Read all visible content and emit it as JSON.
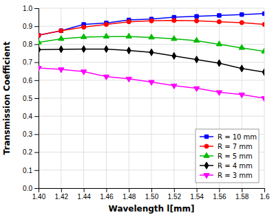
{
  "chart_data": {
    "type": "line",
    "x": [
      1.4,
      1.42,
      1.44,
      1.46,
      1.48,
      1.5,
      1.52,
      1.54,
      1.56,
      1.58,
      1.6
    ],
    "series": [
      {
        "name": "R = 10 mm",
        "color": "#0000ff",
        "marker": "square",
        "values": [
          0.85,
          0.875,
          0.91,
          0.918,
          0.935,
          0.94,
          0.95,
          0.955,
          0.96,
          0.965,
          0.97
        ]
      },
      {
        "name": "R = 7 mm",
        "color": "#ff0000",
        "marker": "circle",
        "values": [
          0.85,
          0.875,
          0.895,
          0.91,
          0.925,
          0.93,
          0.932,
          0.93,
          0.925,
          0.92,
          0.91
        ]
      },
      {
        "name": "R = 5 mm",
        "color": "#00bb00",
        "marker": "triangle-up",
        "values": [
          0.81,
          0.83,
          0.84,
          0.843,
          0.843,
          0.838,
          0.83,
          0.82,
          0.8,
          0.78,
          0.76
        ]
      },
      {
        "name": "R = 4 mm",
        "color": "#000000",
        "marker": "diamond",
        "values": [
          0.77,
          0.772,
          0.773,
          0.773,
          0.765,
          0.755,
          0.735,
          0.715,
          0.695,
          0.665,
          0.645
        ]
      },
      {
        "name": "R = 3 mm",
        "color": "#ff00ff",
        "marker": "triangle-down",
        "values": [
          0.668,
          0.66,
          0.648,
          0.62,
          0.608,
          0.59,
          0.57,
          0.555,
          0.533,
          0.52,
          0.5
        ]
      }
    ],
    "x_label": "Wavelength l[mm]",
    "y_label": "Transmission Coefficient",
    "xlim": [
      1.4,
      1.6
    ],
    "ylim": [
      0.0,
      1.0
    ],
    "xticks": [
      {
        "value": 1.4,
        "label": "1.40"
      },
      1.42,
      1.44,
      1.46,
      1.48,
      {
        "value": 1.5,
        "label": "1.50"
      },
      1.52,
      1.54,
      1.56,
      1.58,
      1.6
    ],
    "yticks": [
      {
        "value": 0.0,
        "label": "0.0"
      },
      0.1,
      0.2,
      0.3,
      0.4,
      0.5,
      0.6,
      0.7,
      0.8,
      0.9,
      {
        "value": 1.0,
        "label": "1.0"
      }
    ],
    "grid": true,
    "legend": "lower right"
  }
}
